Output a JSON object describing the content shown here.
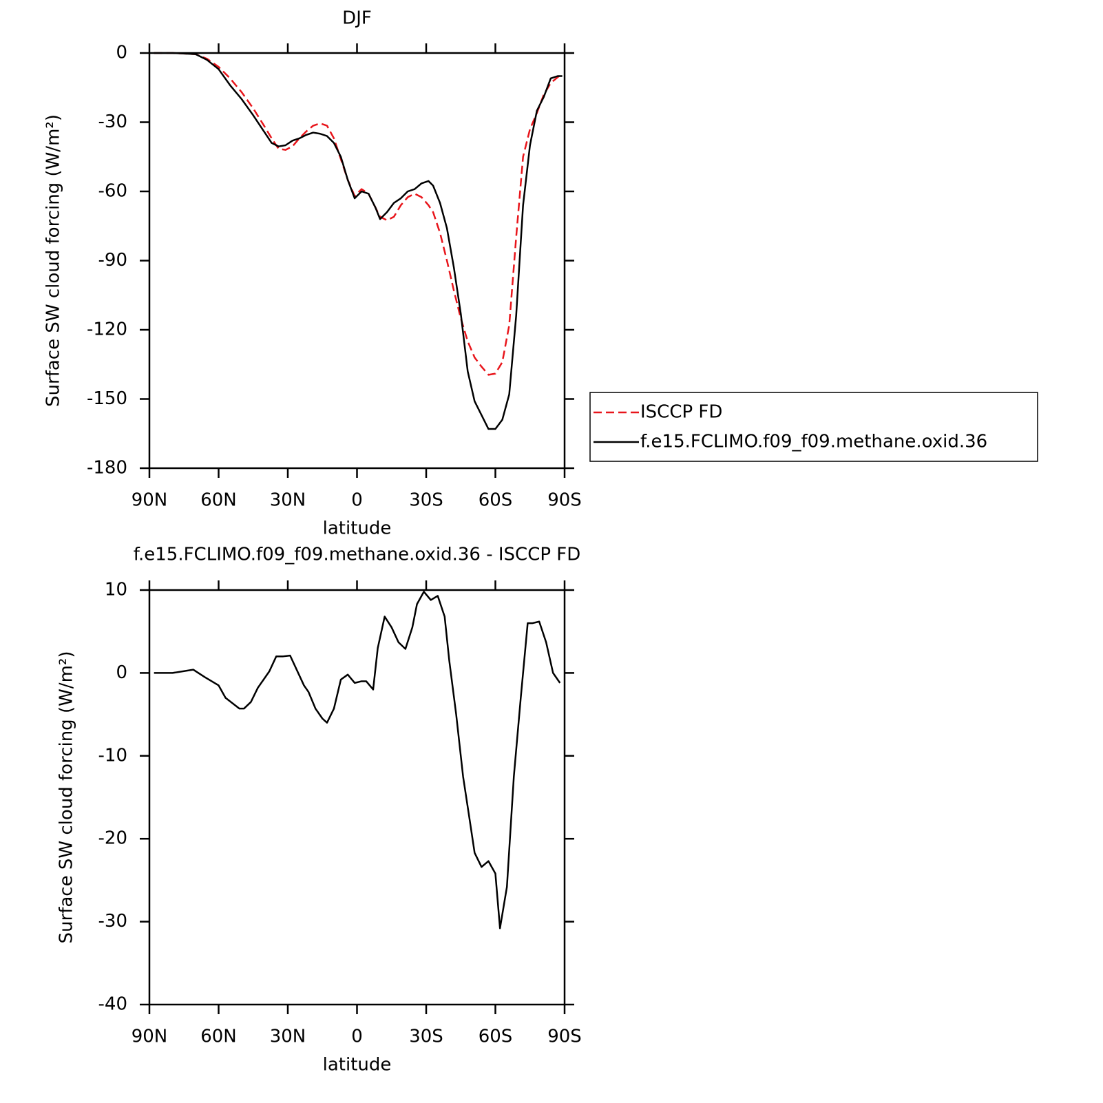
{
  "chart_data": [
    {
      "type": "line",
      "title": "DJF",
      "xlabel": "latitude",
      "ylabel": "Surface SW cloud forcing (W/m²)",
      "x": [
        88,
        80,
        70,
        65,
        60,
        55,
        50,
        45,
        40,
        37,
        34,
        31,
        28,
        25,
        22,
        19,
        16,
        13,
        10,
        7,
        4,
        1,
        -2,
        -5,
        -8,
        -10,
        -13,
        -16,
        -19,
        -22,
        -25,
        -28,
        -31,
        -33,
        -36,
        -39,
        -42,
        -45,
        -48,
        -51,
        -54,
        -57,
        -60,
        -63,
        -66,
        -69,
        -72,
        -75,
        -78,
        -81,
        -84,
        -87,
        -89
      ],
      "series": [
        {
          "name": "ISCCP FD",
          "color": "#e8151b",
          "dashed": true,
          "values": [
            0,
            0,
            -0.5,
            -2.5,
            -6,
            -11,
            -17,
            -24,
            -32,
            -37,
            -41.5,
            -42,
            -40.5,
            -37,
            -34,
            -31.5,
            -30.5,
            -31.5,
            -37,
            -46,
            -55,
            -62,
            -59,
            -61,
            -67,
            -71,
            -72.5,
            -71,
            -66,
            -62.5,
            -61,
            -62.5,
            -66,
            -69,
            -78,
            -90,
            -103,
            -115,
            -125,
            -132,
            -136,
            -139.5,
            -139,
            -134,
            -118,
            -80,
            -45,
            -33,
            -26,
            -18,
            -13,
            -10.5,
            -9
          ]
        },
        {
          "name": "f.e15.FCLIMO.f09_f09.methane.oxid.36",
          "color": "#000000",
          "dashed": false,
          "values": [
            0,
            0,
            -0.5,
            -3,
            -7,
            -14,
            -20,
            -27,
            -34.5,
            -39,
            -40.5,
            -40,
            -38,
            -37,
            -35.5,
            -34.5,
            -35,
            -36,
            -39,
            -45,
            -55,
            -63,
            -60,
            -61,
            -67,
            -72,
            -69,
            -65,
            -63,
            -60,
            -59,
            -56.5,
            -55.5,
            -57.5,
            -65,
            -76,
            -93,
            -113,
            -138,
            -151,
            -157,
            -163,
            -163,
            -159,
            -148,
            -114,
            -66,
            -40,
            -25,
            -19,
            -11,
            -10,
            -10
          ]
        }
      ],
      "xlim": [
        90,
        -90
      ],
      "xticks": [
        {
          "value": 90,
          "label": "90N"
        },
        {
          "value": 60,
          "label": "60N"
        },
        {
          "value": 30,
          "label": "30N"
        },
        0,
        {
          "value": -30,
          "label": "30S"
        },
        {
          "value": -60,
          "label": "60S"
        },
        {
          "value": -90,
          "label": "90S"
        }
      ],
      "ylim": [
        0,
        -180
      ],
      "yticks": [
        0,
        -30,
        -60,
        -90,
        -120,
        -150,
        -180
      ],
      "legend": "outside-right"
    },
    {
      "type": "line",
      "title": "f.e15.FCLIMO.f09_f09.methane.oxid.36 - ISCCP FD",
      "xlabel": "latitude",
      "ylabel": "Surface SW cloud forcing (W/m²)",
      "x": [
        88,
        80,
        71,
        66,
        60,
        57,
        51,
        49,
        46,
        43,
        38,
        35,
        32,
        29,
        23,
        21,
        18,
        15,
        13,
        10,
        7,
        4,
        1,
        -2,
        -4,
        -7,
        -9,
        -12,
        -15,
        -18,
        -21,
        -24,
        -26,
        -29,
        -32,
        -35,
        -38,
        -40,
        -43,
        -46,
        -49,
        -51,
        -54,
        -57,
        -60,
        -62,
        -65,
        -68,
        -71,
        -74,
        -76,
        -79,
        -82,
        -85,
        -88
      ],
      "series": [
        {
          "name": "f.e15.FCLIMO.f09_f09.methane.oxid.36 - ISCCP FD",
          "color": "#000000",
          "dashed": false,
          "values": [
            0,
            0,
            0.4,
            -0.5,
            -1.5,
            -3,
            -4.3,
            -4.3,
            -3.5,
            -1.8,
            0.2,
            2,
            2,
            2.1,
            -1.5,
            -2.3,
            -4.3,
            -5.5,
            -6,
            -4.3,
            -0.8,
            -0.2,
            -1.2,
            -1,
            -1,
            -2,
            3,
            6.8,
            5.5,
            3.7,
            2.9,
            5.5,
            8.3,
            9.8,
            8.8,
            9.3,
            6.8,
            1.5,
            -5,
            -12.5,
            -18,
            -21.7,
            -23.4,
            -22.7,
            -24.2,
            -30.8,
            -25.8,
            -12.5,
            -3,
            6,
            6,
            6.2,
            3.7,
            0,
            -1.2
          ]
        }
      ],
      "xlim": [
        90,
        -90
      ],
      "xticks": [
        {
          "value": 90,
          "label": "90N"
        },
        {
          "value": 60,
          "label": "60N"
        },
        {
          "value": 30,
          "label": "30N"
        },
        0,
        {
          "value": -30,
          "label": "30S"
        },
        {
          "value": -60,
          "label": "60S"
        },
        {
          "value": -90,
          "label": "90S"
        }
      ],
      "ylim": [
        10,
        -40
      ],
      "yticks": [
        10,
        0,
        -10,
        -20,
        -30,
        -40
      ]
    }
  ]
}
